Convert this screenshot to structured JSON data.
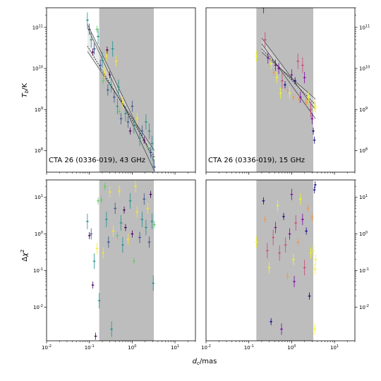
{
  "figure": {
    "ylabel_top": "T_b/K",
    "ylabel_bottom": "Δχ²",
    "xlabel": "d_c/mas"
  },
  "colors": {
    "band_fill": "#bdbdbd",
    "fit_band": "#dcdcdc",
    "viridis": [
      "#440154",
      "#3b528b",
      "#21918c",
      "#5ec962",
      "#fde725"
    ],
    "plasma": [
      "#0d0887",
      "#7e03a8",
      "#cc4778",
      "#f89540",
      "#f0f921"
    ]
  },
  "chart_data": [
    {
      "id": "top-left",
      "type": "scatter",
      "label": "CTA 26 (0336-019), 43 GHz",
      "ylabel": "T_b/K",
      "xscale": "log",
      "yscale": "log",
      "xlim": [
        0.01,
        30
      ],
      "ylim": [
        30000000.0,
        300000000000.0
      ],
      "x_ticks": [],
      "y_ticks": [
        "10^8",
        "10^9",
        "10^10",
        "10^11"
      ],
      "y_tick_side": "left",
      "shaded_x": [
        0.17,
        3.2
      ],
      "fit_lines": [
        {
          "x": [
            0.09,
            3.3
          ],
          "y": [
            120000000000.0,
            55000000.0
          ]
        },
        {
          "x": [
            0.09,
            3.3
          ],
          "y": [
            26000000000.0,
            100000000.0
          ]
        },
        {
          "x": [
            0.09,
            3.3
          ],
          "y": [
            100000000000.0,
            32000000.0
          ]
        },
        {
          "x": [
            0.09,
            3.3
          ],
          "y": [
            35000000000.0,
            70000000.0
          ]
        }
      ],
      "points": [
        {
          "x": 0.09,
          "y": 150000000000.0,
          "c": 2
        },
        {
          "x": 0.1,
          "y": 90000000000.0,
          "c": 1
        },
        {
          "x": 0.11,
          "y": 50000000000.0,
          "c": 2
        },
        {
          "x": 0.12,
          "y": 25000000000.0,
          "c": 0
        },
        {
          "x": 0.13,
          "y": 30000000000.0,
          "c": 1
        },
        {
          "x": 0.15,
          "y": 90000000000.0,
          "c": 3
        },
        {
          "x": 0.16,
          "y": 60000000000.0,
          "c": 2
        },
        {
          "x": 0.18,
          "y": 12000000000.0,
          "c": 1
        },
        {
          "x": 0.2,
          "y": 16000000000.0,
          "c": 2
        },
        {
          "x": 0.21,
          "y": 5000000000.0,
          "c": 3
        },
        {
          "x": 0.23,
          "y": 8000000000.0,
          "c": 4
        },
        {
          "x": 0.25,
          "y": 20000000000.0,
          "c": 4
        },
        {
          "x": 0.27,
          "y": 3000000000.0,
          "c": 1
        },
        {
          "x": 0.3,
          "y": 7000000000.0,
          "c": 0
        },
        {
          "x": 0.32,
          "y": 4000000000.0,
          "c": 2
        },
        {
          "x": 0.35,
          "y": 30000000000.0,
          "c": 2
        },
        {
          "x": 0.38,
          "y": 2000000000.0,
          "c": 1
        },
        {
          "x": 0.42,
          "y": 15000000000.0,
          "c": 4
        },
        {
          "x": 0.45,
          "y": 1200000000.0,
          "c": 2
        },
        {
          "x": 0.5,
          "y": 900000000.0,
          "c": 3
        },
        {
          "x": 0.55,
          "y": 600000000.0,
          "c": 1
        },
        {
          "x": 0.6,
          "y": 1500000000.0,
          "c": 4
        },
        {
          "x": 0.7,
          "y": 800000000.0,
          "c": 2
        },
        {
          "x": 0.8,
          "y": 500000000.0,
          "c": 1
        },
        {
          "x": 0.9,
          "y": 300000000.0,
          "c": 0
        },
        {
          "x": 1.0,
          "y": 1200000000.0,
          "c": 1
        },
        {
          "x": 1.1,
          "y": 400000000.0,
          "c": 2
        },
        {
          "x": 1.3,
          "y": 600000000.0,
          "c": 4
        },
        {
          "x": 1.5,
          "y": 200000000.0,
          "c": 2
        },
        {
          "x": 1.7,
          "y": 300000000.0,
          "c": 1
        },
        {
          "x": 1.9,
          "y": 180000000.0,
          "c": 0
        },
        {
          "x": 2.1,
          "y": 500000000.0,
          "c": 2
        },
        {
          "x": 2.3,
          "y": 120000000.0,
          "c": 3
        },
        {
          "x": 2.5,
          "y": 300000000.0,
          "c": 2
        },
        {
          "x": 2.7,
          "y": 90000000.0,
          "c": 1
        },
        {
          "x": 2.9,
          "y": 150000000.0,
          "c": 2
        },
        {
          "x": 3.1,
          "y": 60000000.0,
          "c": 2
        },
        {
          "x": 3.3,
          "y": 40000000.0,
          "c": 1
        },
        {
          "x": 0.26,
          "y": 28000000000.0,
          "c": 0
        },
        {
          "x": 0.48,
          "y": 3500000000.0,
          "c": 2
        }
      ]
    },
    {
      "id": "top-right",
      "type": "scatter",
      "label": "CTA 26 (0336-019), 15 GHz",
      "xscale": "log",
      "yscale": "log",
      "xlim": [
        0.01,
        30
      ],
      "ylim": [
        30000000.0,
        300000000000.0
      ],
      "x_ticks": [],
      "y_ticks": [
        "10^8",
        "10^9",
        "10^10",
        "10^11"
      ],
      "y_tick_side": "right",
      "shaded_x": [
        0.15,
        3.2
      ],
      "fit_lines": [
        {
          "x": [
            0.2,
            3.6
          ],
          "y": [
            55000000000.0,
            1000000000.0
          ]
        },
        {
          "x": [
            0.2,
            3.6
          ],
          "y": [
            25000000000.0,
            1800000000.0
          ]
        },
        {
          "x": [
            0.2,
            3.6
          ],
          "y": [
            40000000000.0,
            600000000.0
          ]
        },
        {
          "x": [
            0.2,
            3.6
          ],
          "y": [
            30000000000.0,
            1300000000.0
          ]
        }
      ],
      "points": [
        {
          "x": 0.15,
          "y": 20000000000.0,
          "c": 4
        },
        {
          "x": 0.22,
          "y": 300000000000.0,
          "c": 1
        },
        {
          "x": 0.24,
          "y": 50000000000.0,
          "c": 2
        },
        {
          "x": 0.28,
          "y": 18000000000.0,
          "c": 1
        },
        {
          "x": 0.33,
          "y": 13000000000.0,
          "c": 4
        },
        {
          "x": 0.38,
          "y": 8000000000.0,
          "c": 3
        },
        {
          "x": 0.45,
          "y": 6000000000.0,
          "c": 4
        },
        {
          "x": 0.5,
          "y": 10000000000.0,
          "c": 1
        },
        {
          "x": 0.6,
          "y": 5000000000.0,
          "c": 2
        },
        {
          "x": 0.7,
          "y": 4000000000.0,
          "c": 0
        },
        {
          "x": 0.8,
          "y": 3000000000.0,
          "c": 3
        },
        {
          "x": 0.9,
          "y": 2500000000.0,
          "c": 4
        },
        {
          "x": 1.0,
          "y": 7000000000.0,
          "c": 1
        },
        {
          "x": 1.1,
          "y": 2000000000.0,
          "c": 3
        },
        {
          "x": 1.2,
          "y": 5000000000.0,
          "c": 0
        },
        {
          "x": 1.4,
          "y": 15000000000.0,
          "c": 2
        },
        {
          "x": 1.6,
          "y": 2000000000.0,
          "c": 1
        },
        {
          "x": 1.8,
          "y": 12000000000.0,
          "c": 2
        },
        {
          "x": 2.0,
          "y": 6000000000.0,
          "c": 1
        },
        {
          "x": 2.2,
          "y": 1500000000.0,
          "c": 3
        },
        {
          "x": 2.5,
          "y": 2000000000.0,
          "c": 4
        },
        {
          "x": 2.8,
          "y": 1000000000.0,
          "c": 2
        },
        {
          "x": 3.0,
          "y": 600000000.0,
          "c": 1
        },
        {
          "x": 3.2,
          "y": 300000000.0,
          "c": 0
        },
        {
          "x": 3.4,
          "y": 180000000.0,
          "c": 0
        },
        {
          "x": 3.5,
          "y": 1200000000.0,
          "c": 4
        },
        {
          "x": 3.6,
          "y": 1100000000.0,
          "c": 4
        },
        {
          "x": 0.55,
          "y": 2500000000.0,
          "c": 4
        },
        {
          "x": 1.5,
          "y": 1800000000.0,
          "c": 3
        },
        {
          "x": 0.42,
          "y": 12000000000.0,
          "c": 1
        }
      ]
    },
    {
      "id": "bottom-left",
      "type": "scatter",
      "ylabel": "Δχ²",
      "xscale": "log",
      "yscale": "log",
      "xlim": [
        0.01,
        30
      ],
      "ylim": [
        0.0012,
        30
      ],
      "x_ticks": [
        "10^-2",
        "10^-1",
        "10^0",
        "10^1"
      ],
      "y_ticks": [
        "10^-2",
        "10^-1",
        "10^0",
        "10^1"
      ],
      "y_tick_side": "left",
      "shaded_x": [
        0.17,
        3.2
      ],
      "points": [
        {
          "x": 0.09,
          "y": 2.2,
          "c": 2
        },
        {
          "x": 0.1,
          "y": 0.9,
          "c": 0
        },
        {
          "x": 0.11,
          "y": 1.0,
          "c": 1
        },
        {
          "x": 0.12,
          "y": 0.04,
          "c": 0
        },
        {
          "x": 0.13,
          "y": 0.18,
          "c": 2
        },
        {
          "x": 0.14,
          "y": 0.0016,
          "c": 0
        },
        {
          "x": 0.15,
          "y": 0.4,
          "c": 4
        },
        {
          "x": 0.16,
          "y": 8,
          "c": 3
        },
        {
          "x": 0.17,
          "y": 0.015,
          "c": 2
        },
        {
          "x": 0.19,
          "y": 8.5,
          "c": 3
        },
        {
          "x": 0.21,
          "y": 0.3,
          "c": 4
        },
        {
          "x": 0.23,
          "y": 20,
          "c": 3
        },
        {
          "x": 0.25,
          "y": 2.5,
          "c": 2
        },
        {
          "x": 0.28,
          "y": 0.6,
          "c": 1
        },
        {
          "x": 0.3,
          "y": 14,
          "c": 4
        },
        {
          "x": 0.33,
          "y": 0.0025,
          "c": 2
        },
        {
          "x": 0.36,
          "y": 1.2,
          "c": 4
        },
        {
          "x": 0.4,
          "y": 5,
          "c": 1
        },
        {
          "x": 0.45,
          "y": 0.9,
          "c": 3
        },
        {
          "x": 0.5,
          "y": 15,
          "c": 4
        },
        {
          "x": 0.55,
          "y": 2,
          "c": 2
        },
        {
          "x": 0.6,
          "y": 0.5,
          "c": 2
        },
        {
          "x": 0.7,
          "y": 1.5,
          "c": 0
        },
        {
          "x": 0.8,
          "y": 0.7,
          "c": 4
        },
        {
          "x": 0.9,
          "y": 8,
          "c": 2
        },
        {
          "x": 1.0,
          "y": 1.0,
          "c": 0
        },
        {
          "x": 1.1,
          "y": 0.18,
          "c": 3
        },
        {
          "x": 1.3,
          "y": 4,
          "c": 4
        },
        {
          "x": 1.5,
          "y": 0.8,
          "c": 1
        },
        {
          "x": 1.7,
          "y": 2.5,
          "c": 2
        },
        {
          "x": 1.9,
          "y": 9,
          "c": 1
        },
        {
          "x": 2.1,
          "y": 1.5,
          "c": 2
        },
        {
          "x": 2.3,
          "y": 5,
          "c": 4
        },
        {
          "x": 2.5,
          "y": 0.6,
          "c": 1
        },
        {
          "x": 2.7,
          "y": 12,
          "c": 0
        },
        {
          "x": 2.9,
          "y": 2.2,
          "c": 2
        },
        {
          "x": 3.1,
          "y": 0.045,
          "c": 2
        },
        {
          "x": 3.3,
          "y": 1.8,
          "c": 3
        },
        {
          "x": 0.65,
          "y": 4.5,
          "c": 0
        },
        {
          "x": 1.2,
          "y": 20,
          "c": 4
        }
      ]
    },
    {
      "id": "bottom-right",
      "type": "scatter",
      "xlabel": "d_c/mas",
      "xscale": "log",
      "yscale": "log",
      "xlim": [
        0.01,
        30
      ],
      "ylim": [
        0.0012,
        30
      ],
      "x_ticks": [
        "10^-2",
        "10^-1",
        "10^0",
        "10^1"
      ],
      "y_ticks": [
        "10^-2",
        "10^-1",
        "10^0",
        "10^1"
      ],
      "y_tick_side": "right",
      "shaded_x": [
        0.15,
        3.2
      ],
      "points": [
        {
          "x": 0.15,
          "y": 0.6,
          "c": 4
        },
        {
          "x": 0.22,
          "y": 8,
          "c": 0
        },
        {
          "x": 0.24,
          "y": 2.5,
          "c": 3
        },
        {
          "x": 0.27,
          "y": 0.35,
          "c": 2
        },
        {
          "x": 0.3,
          "y": 0.12,
          "c": 4
        },
        {
          "x": 0.33,
          "y": 0.004,
          "c": 0
        },
        {
          "x": 0.37,
          "y": 0.8,
          "c": 2
        },
        {
          "x": 0.42,
          "y": 1.5,
          "c": 1
        },
        {
          "x": 0.47,
          "y": 6,
          "c": 4
        },
        {
          "x": 0.52,
          "y": 0.3,
          "c": 2
        },
        {
          "x": 0.58,
          "y": 0.0025,
          "c": 1
        },
        {
          "x": 0.65,
          "y": 3,
          "c": 0
        },
        {
          "x": 0.72,
          "y": 0.5,
          "c": 2
        },
        {
          "x": 0.8,
          "y": 0.07,
          "c": 3
        },
        {
          "x": 0.9,
          "y": 1.0,
          "c": 1
        },
        {
          "x": 1.0,
          "y": 12,
          "c": 1
        },
        {
          "x": 1.1,
          "y": 0.2,
          "c": 4
        },
        {
          "x": 1.25,
          "y": 2,
          "c": 2
        },
        {
          "x": 1.4,
          "y": 0.6,
          "c": 3
        },
        {
          "x": 1.6,
          "y": 9,
          "c": 4
        },
        {
          "x": 1.8,
          "y": 2.5,
          "c": 1
        },
        {
          "x": 2.0,
          "y": 0.12,
          "c": 2
        },
        {
          "x": 2.2,
          "y": 1.2,
          "c": 0
        },
        {
          "x": 2.4,
          "y": 5,
          "c": 3
        },
        {
          "x": 2.6,
          "y": 0.02,
          "c": 0
        },
        {
          "x": 2.8,
          "y": 0.3,
          "c": 4
        },
        {
          "x": 3.0,
          "y": 2.8,
          "c": 3
        },
        {
          "x": 3.2,
          "y": 0.35,
          "c": 4
        },
        {
          "x": 3.4,
          "y": 16,
          "c": 0
        },
        {
          "x": 3.5,
          "y": 0.11,
          "c": 4
        },
        {
          "x": 3.55,
          "y": 22,
          "c": 0
        },
        {
          "x": 3.6,
          "y": 0.2,
          "c": 4
        },
        {
          "x": 3.45,
          "y": 0.0025,
          "c": 4
        },
        {
          "x": 1.15,
          "y": 0.05,
          "c": 1
        }
      ]
    }
  ]
}
